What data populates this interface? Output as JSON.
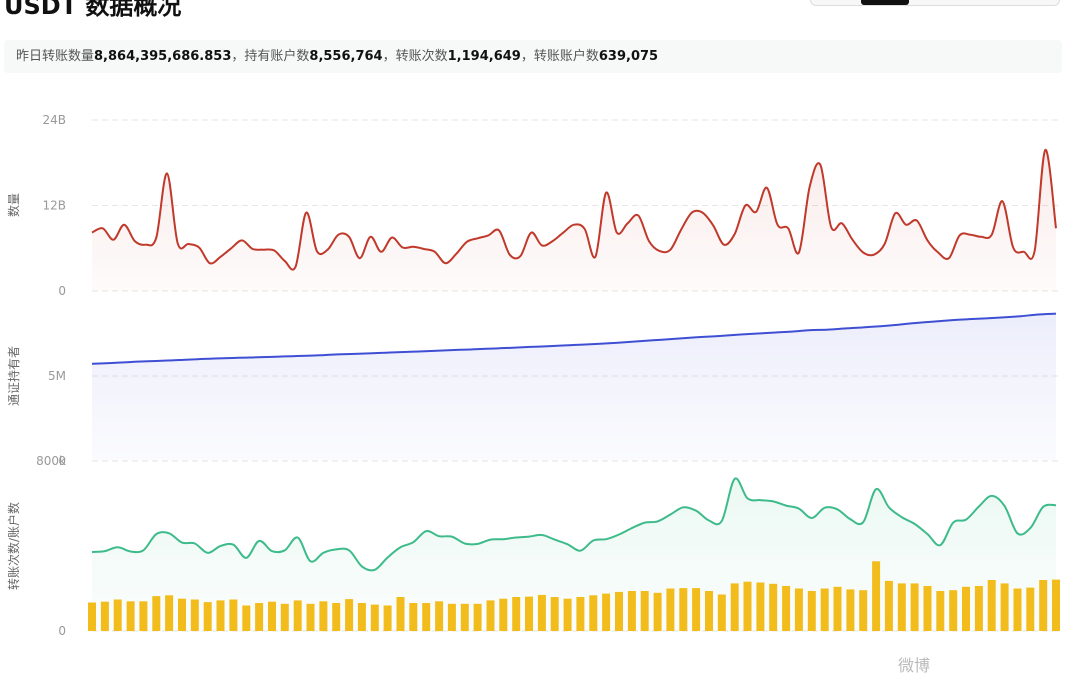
{
  "header": {
    "title": "USDT 数据概况"
  },
  "summary": {
    "items": [
      {
        "label": "昨日转账数量",
        "value": "8,864,395,686.853",
        "sep": "，"
      },
      {
        "label": "持有账户数",
        "value": "8,556,764",
        "sep": "，"
      },
      {
        "label": "转账次数",
        "value": "1,194,649",
        "sep": "，"
      },
      {
        "label": "转账账户数",
        "value": "639,075",
        "sep": ""
      }
    ]
  },
  "colors": {
    "amount": "#c0392b",
    "holders": "#3f4fd4",
    "tx_count": "#3dbb8a",
    "accounts": "#f2bd1c",
    "grid": "#e6e6e6"
  },
  "chart_data": [
    {
      "type": "area",
      "ylabel": "数量",
      "ylim": [
        0,
        24000000000
      ],
      "yticks": [
        "0",
        "12B",
        "24B"
      ],
      "series": [
        {
          "values": [
            8.2,
            8.8,
            7.2,
            9.3,
            7.0,
            6.5,
            7.5,
            16.5,
            6.7,
            6.6,
            6.1,
            3.9,
            4.8,
            6.0,
            7.1,
            5.9,
            5.8,
            5.7,
            4.2,
            3.4,
            11.0,
            5.6,
            5.8,
            7.9,
            7.6,
            4.6,
            7.6,
            5.5,
            7.5,
            6.1,
            6.2,
            5.9,
            5.5,
            3.9,
            5.2,
            6.9,
            7.4,
            7.8,
            8.5,
            5.1,
            4.9,
            8.2,
            6.4,
            7.0,
            8.2,
            9.3,
            8.7,
            4.8,
            13.8,
            8.2,
            9.5,
            10.6,
            7.0,
            5.6,
            5.8,
            8.6,
            11.0,
            11.0,
            9.2,
            6.5,
            8.0,
            12.0,
            11.1,
            14.5,
            9.3,
            8.8,
            5.4,
            14.6,
            17.7,
            9.0,
            9.5,
            7.2,
            5.4,
            5.1,
            6.6,
            10.9,
            9.3,
            9.9,
            7.1,
            5.4,
            4.6,
            7.8,
            7.9,
            7.6,
            7.9,
            12.6,
            6.1,
            5.5,
            5.6,
            19.8,
            8.8
          ]
        }
      ]
    },
    {
      "type": "area",
      "ylabel": "通证持有者",
      "ylim": [
        0,
        10000000
      ],
      "yticks": [
        "0",
        "5M"
      ],
      "series": [
        {
          "values": [
            5.72,
            5.76,
            5.81,
            5.86,
            5.9,
            5.94,
            5.99,
            6.03,
            6.06,
            6.09,
            6.12,
            6.15,
            6.18,
            6.22,
            6.27,
            6.3,
            6.34,
            6.38,
            6.42,
            6.46,
            6.5,
            6.54,
            6.58,
            6.62,
            6.66,
            6.71,
            6.75,
            6.8,
            6.85,
            6.9,
            6.96,
            7.03,
            7.1,
            7.17,
            7.24,
            7.31,
            7.37,
            7.44,
            7.5,
            7.56,
            7.62,
            7.7,
            7.73,
            7.8,
            7.86,
            7.93,
            8.02,
            8.12,
            8.2,
            8.28,
            8.34,
            8.39,
            8.45,
            8.52,
            8.62,
            8.67
          ]
        }
      ]
    },
    {
      "type": "bar",
      "ylabel": "转账次数/账户数",
      "ylim": [
        0,
        2000000
      ],
      "yticks": [
        "0",
        "800k"
      ],
      "series": [
        {
          "type": "line",
          "values": [
            930,
            940,
            985,
            935,
            950,
            1140,
            1150,
            1040,
            1030,
            920,
            1000,
            1015,
            860,
            1060,
            940,
            950,
            1100,
            820,
            920,
            960,
            950,
            760,
            720,
            865,
            985,
            1045,
            1175,
            1115,
            1110,
            1030,
            1025,
            1075,
            1080,
            1100,
            1110,
            1130,
            1075,
            1020,
            945,
            1065,
            1080,
            1135,
            1210,
            1275,
            1290,
            1370,
            1455,
            1415,
            1300,
            1295,
            1790,
            1560,
            1540,
            1525,
            1475,
            1440,
            1330,
            1450,
            1430,
            1315,
            1280,
            1670,
            1455,
            1340,
            1260,
            1140,
            1010,
            1275,
            1310,
            1465,
            1590,
            1470,
            1150,
            1210,
            1460,
            1480
          ]
        },
        {
          "type": "bar",
          "values": [
            335,
            345,
            370,
            350,
            350,
            410,
            420,
            380,
            370,
            340,
            360,
            370,
            300,
            330,
            345,
            320,
            360,
            320,
            350,
            330,
            375,
            330,
            310,
            300,
            400,
            330,
            330,
            350,
            320,
            320,
            320,
            360,
            380,
            400,
            405,
            425,
            400,
            380,
            400,
            420,
            440,
            460,
            470,
            470,
            450,
            500,
            505,
            505,
            470,
            430,
            560,
            580,
            570,
            555,
            530,
            500,
            470,
            500,
            520,
            490,
            480,
            820,
            590,
            560,
            560,
            530,
            470,
            480,
            520,
            530,
            600,
            560,
            500,
            510,
            600,
            605
          ]
        }
      ]
    }
  ],
  "watermark": "微博"
}
